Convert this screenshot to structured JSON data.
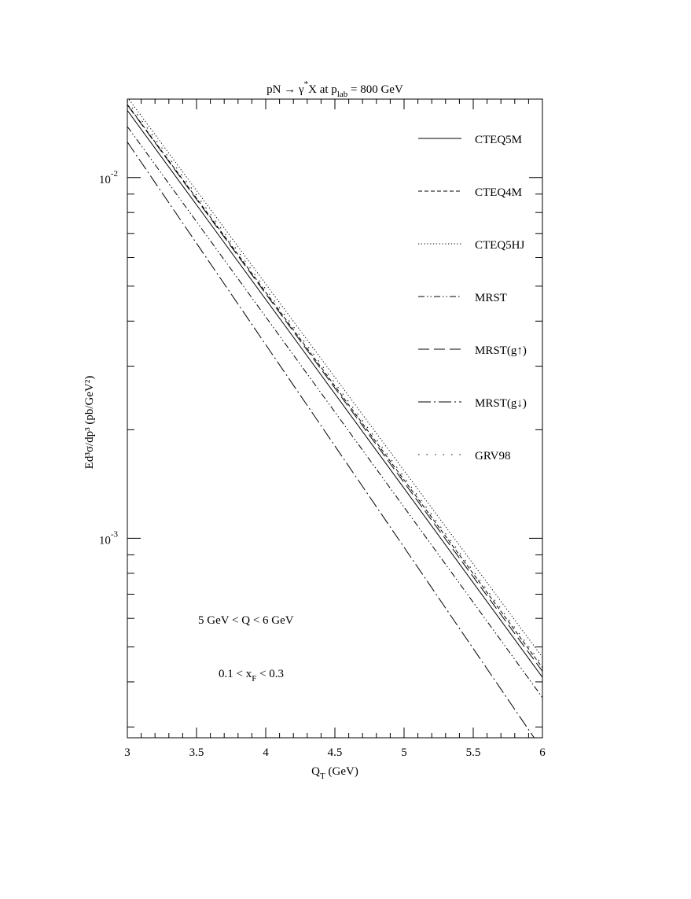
{
  "chart_data": {
    "type": "line",
    "title": {
      "pre": "pN → γ",
      "sup": "*",
      "mid": "X at p",
      "sub": "lab",
      "post": " = 800 GeV"
    },
    "xlabel": {
      "main": "Q",
      "sub": "T",
      "post": " (GeV)"
    },
    "ylabel": "Ed³σ/dp³ (pb/GeV²)",
    "y_scale": "log",
    "xlim": [
      3,
      6
    ],
    "ylim": [
      0.00028,
      0.0165
    ],
    "x_ticks": [
      3,
      3.5,
      4,
      4.5,
      5,
      5.5,
      6
    ],
    "x_tick_labels": [
      "3",
      "3.5",
      "4",
      "4.5",
      "5",
      "5.5",
      "6"
    ],
    "y_major_ticks": [
      0.01,
      0.001
    ],
    "y_major_tick_labels": [
      {
        "base": "10",
        "exp": "-2"
      },
      {
        "base": "10",
        "exp": "-3"
      }
    ],
    "grid": false,
    "legend_position": "top-right",
    "series": [
      {
        "name": "CTEQ5M",
        "dash": "solid",
        "x": [
          3,
          6
        ],
        "y": [
          0.01535,
          0.000412
        ]
      },
      {
        "name": "CTEQ4M",
        "dash": "dashed",
        "x": [
          3,
          6
        ],
        "y": [
          0.01595,
          0.000438
        ]
      },
      {
        "name": "CTEQ5HJ",
        "dash": "dotted",
        "x": [
          3,
          6
        ],
        "y": [
          0.0167,
          0.000468
        ]
      },
      {
        "name": "MRST",
        "dash": "dash-dot-dot",
        "x": [
          3,
          6
        ],
        "y": [
          0.01385,
          0.000362
        ]
      },
      {
        "name": "MRST(g↑)",
        "dash": "long-dash",
        "x": [
          3,
          6
        ],
        "y": [
          0.0159,
          0.000428
        ]
      },
      {
        "name": "MRST(g↓)",
        "dash": "long-dash-dot",
        "x": [
          3,
          5.94
        ],
        "y": [
          0.01255,
          0.00028
        ]
      },
      {
        "name": "GRV98",
        "dash": "sparse-dot",
        "x": [
          3,
          6
        ],
        "y": [
          0.0163,
          0.000445
        ]
      }
    ],
    "annotations": [
      {
        "text": "5 GeV < Q < 6 GeV"
      },
      {
        "pre": "0.1 < x",
        "sub": "F",
        "post": " < 0.3"
      }
    ]
  }
}
